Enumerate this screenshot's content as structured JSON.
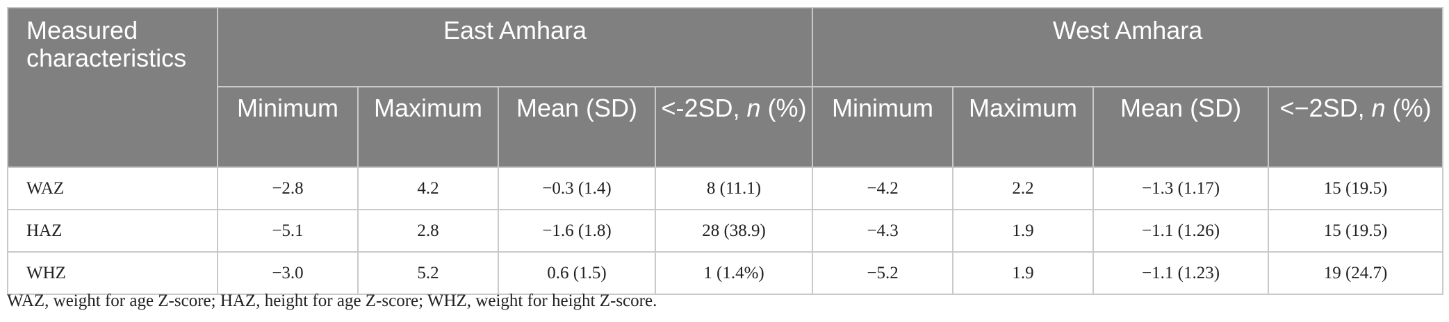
{
  "table": {
    "corner_header": "Measured characteristics",
    "groups": [
      "East Amhara",
      "West Amhara"
    ],
    "subheaders": [
      "Minimum",
      "Maximum",
      "Mean (SD)",
      "<-2SD, n (%)",
      "Minimum",
      "Maximum",
      "Mean (SD)",
      "<−2SD, n (%)"
    ],
    "rows": [
      {
        "label": "WAZ",
        "cells": [
          "−2.8",
          "4.2",
          "−0.3 (1.4)",
          "8 (11.1)",
          "−4.2",
          "2.2",
          "−1.3 (1.17)",
          "15 (19.5)"
        ]
      },
      {
        "label": "HAZ",
        "cells": [
          "−5.1",
          "2.8",
          "−1.6 (1.8)",
          "28 (38.9)",
          "−4.3",
          "1.9",
          "−1.1 (1.26)",
          "15 (19.5)"
        ]
      },
      {
        "label": "WHZ",
        "cells": [
          "−3.0",
          "5.2",
          "0.6 (1.5)",
          "1 (1.4%)",
          "−5.2",
          "1.9",
          "−1.1 (1.23)",
          "19 (24.7)"
        ]
      }
    ]
  },
  "footnote": "WAZ, weight for age Z-score; HAZ, height for age Z-score; WHZ, weight for height Z-score."
}
